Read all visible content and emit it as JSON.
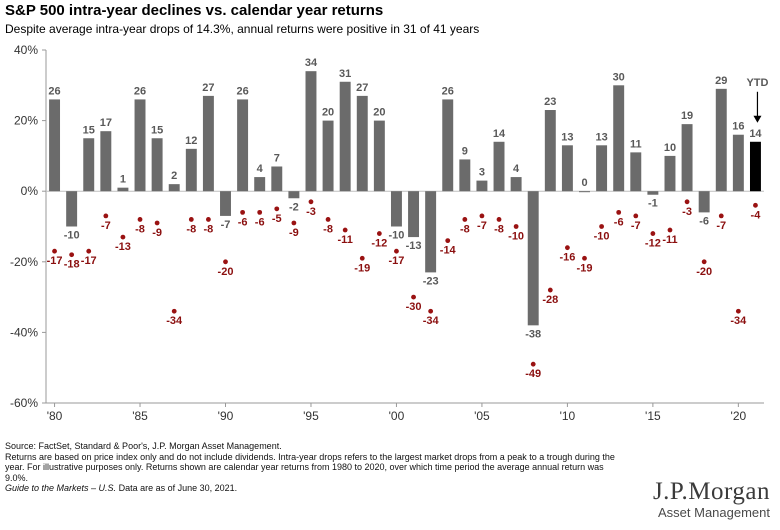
{
  "title": "S&P 500 intra-year declines vs. calendar year returns",
  "subtitle": "Despite average intra-year drops of 14.3%, annual returns were positive in 31 of 41 years",
  "footnotes": {
    "source": "Source: FactSet, Standard & Poor's, J.P. Morgan Asset Management.",
    "note": "Returns are based on price index only and do not include dividends. Intra-year drops refers to the largest market drops from a peak to a trough during the year. For illustrative purposes only. Returns shown are calendar year returns from 1980 to 2020, over which time period the average annual return was 9.0%.",
    "guide_italic": "Guide to the Markets – U.S.",
    "guide_rest": " Data are as of June 30, 2021."
  },
  "brand": {
    "name": "J.P.Morgan",
    "sub": "Asset Management"
  },
  "colors": {
    "bar": "#6b6b6b",
    "ytd_bar": "#000000",
    "dip": "#9a1212",
    "axis": "#999999"
  },
  "chart_data": {
    "type": "bar",
    "ylim": [
      -60,
      40
    ],
    "ytick_labels": [
      "40%",
      "20%",
      "0%",
      "-20%",
      "-40%",
      "-60%"
    ],
    "ytick_values": [
      40,
      20,
      0,
      -20,
      -40,
      -60
    ],
    "xtick_labels": [
      "'80",
      "'85",
      "'90",
      "'95",
      "'00",
      "'05",
      "'10",
      "'15",
      "'20"
    ],
    "xtick_years": [
      1980,
      1985,
      1990,
      1995,
      2000,
      2005,
      2010,
      2015,
      2020
    ],
    "ytd_label": "YTD",
    "years": [
      1980,
      1981,
      1982,
      1983,
      1984,
      1985,
      1986,
      1987,
      1988,
      1989,
      1990,
      1991,
      1992,
      1993,
      1994,
      1995,
      1996,
      1997,
      1998,
      1999,
      2000,
      2001,
      2002,
      2003,
      2004,
      2005,
      2006,
      2007,
      2008,
      2009,
      2010,
      2011,
      2012,
      2013,
      2014,
      2015,
      2016,
      2017,
      2018,
      2019,
      2020,
      2021
    ],
    "series": [
      {
        "name": "Calendar year return",
        "values": [
          26,
          -10,
          15,
          17,
          1,
          26,
          15,
          2,
          12,
          27,
          -7,
          26,
          4,
          7,
          -2,
          34,
          20,
          31,
          27,
          20,
          -10,
          -13,
          -23,
          26,
          9,
          3,
          14,
          4,
          -38,
          23,
          13,
          0,
          13,
          30,
          11,
          -1,
          10,
          19,
          -6,
          29,
          16,
          14
        ]
      },
      {
        "name": "Intra-year decline",
        "values": [
          -17,
          -18,
          -17,
          -7,
          -13,
          -8,
          -9,
          -34,
          -8,
          -8,
          -20,
          -6,
          -6,
          -5,
          -9,
          -3,
          -8,
          -11,
          -19,
          -12,
          -17,
          -30,
          -34,
          -14,
          -8,
          -7,
          -8,
          -10,
          -49,
          -28,
          -16,
          -19,
          -10,
          -6,
          -7,
          -12,
          -11,
          -3,
          -20,
          -7,
          -34,
          -4
        ]
      }
    ]
  }
}
